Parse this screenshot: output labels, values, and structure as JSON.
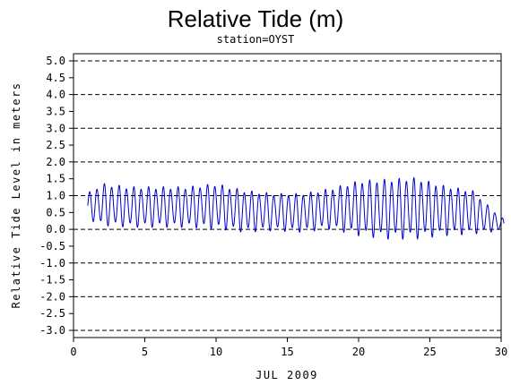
{
  "chart_data": {
    "type": "line",
    "title": "Relative Tide (m)",
    "subtitle": "station=OYST",
    "xlabel": "JUL 2009",
    "ylabel": "Relative Tide Level in meters",
    "xlim": [
      0,
      30
    ],
    "ylim": [
      -3.0,
      5.0
    ],
    "x_ticks": [
      0,
      5,
      10,
      15,
      20,
      25,
      30
    ],
    "y_ticks": [
      5.0,
      4.5,
      4.0,
      3.5,
      3.0,
      2.5,
      2.0,
      1.5,
      1.0,
      0.5,
      0.0,
      -0.5,
      -1.0,
      -1.5,
      -2.0,
      -2.5,
      -3.0
    ],
    "y_tick_labels": [
      "5.0",
      "4.5",
      "4.0",
      "3.5",
      "3.0",
      "2.5",
      "2.0",
      "1.5",
      "1.0",
      "0.5",
      "0.0",
      "-0.5",
      "-1.0",
      "-1.5",
      "-2.0",
      "-2.5",
      "-3.0"
    ],
    "gridlines_y": [
      5.0,
      4.0,
      3.0,
      2.0,
      1.0,
      0.0,
      -1.0,
      -2.0,
      -3.0
    ],
    "grid_style": "dashed horizontal at whole meters",
    "line_color": "#0000cc",
    "series": [
      {
        "approximate_envelope": [
          {
            "day": 1,
            "high": 1.1,
            "low": 0.3
          },
          {
            "day": 2,
            "high": 1.4,
            "low": 0.1
          },
          {
            "day": 4,
            "high": 1.3,
            "low": 0.05
          },
          {
            "day": 6,
            "high": 1.3,
            "low": 0.05
          },
          {
            "day": 8,
            "high": 1.3,
            "low": 0.05
          },
          {
            "day": 10,
            "high": 1.4,
            "low": 0.0
          },
          {
            "day": 12,
            "high": 1.2,
            "low": -0.1
          },
          {
            "day": 14,
            "high": 1.1,
            "low": -0.05
          },
          {
            "day": 16,
            "high": 1.1,
            "low": -0.1
          },
          {
            "day": 18,
            "high": 1.25,
            "low": 0.0
          },
          {
            "day": 20,
            "high": 1.5,
            "low": -0.2
          },
          {
            "day": 22,
            "high": 1.55,
            "low": -0.3
          },
          {
            "day": 24,
            "high": 1.6,
            "low": -0.3
          },
          {
            "day": 26,
            "high": 1.35,
            "low": -0.2
          },
          {
            "day": 28,
            "high": 1.2,
            "low": -0.15
          },
          {
            "day": 30,
            "high": 0.35,
            "low": -0.05
          }
        ],
        "x_start": 1.0,
        "x_end": 30.2,
        "period_days": 0.517
      }
    ]
  }
}
